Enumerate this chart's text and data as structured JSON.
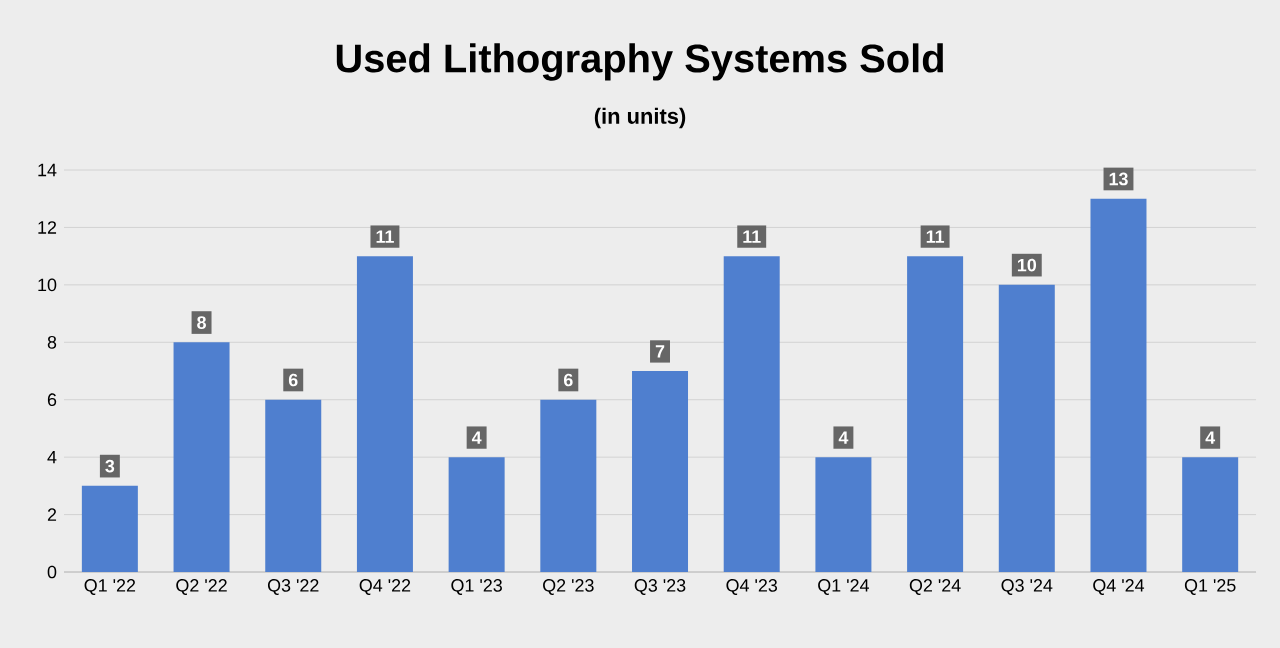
{
  "chart_data": {
    "type": "bar",
    "title": "Used Lithography Systems Sold",
    "subtitle": "(in units)",
    "categories": [
      "Q1 '22",
      "Q2 '22",
      "Q3 '22",
      "Q4 '22",
      "Q1 '23",
      "Q2 '23",
      "Q3 '23",
      "Q4 '23",
      "Q1 '24",
      "Q2 '24",
      "Q3 '24",
      "Q4 '24",
      "Q1 '25"
    ],
    "values": [
      3,
      8,
      6,
      11,
      4,
      6,
      7,
      11,
      4,
      11,
      10,
      13,
      4
    ],
    "color": "#4f7fcf",
    "ylim": [
      0,
      14
    ],
    "yticks": [
      0,
      2,
      4,
      6,
      8,
      10,
      12,
      14
    ],
    "grid": "y",
    "data_labels": true
  }
}
